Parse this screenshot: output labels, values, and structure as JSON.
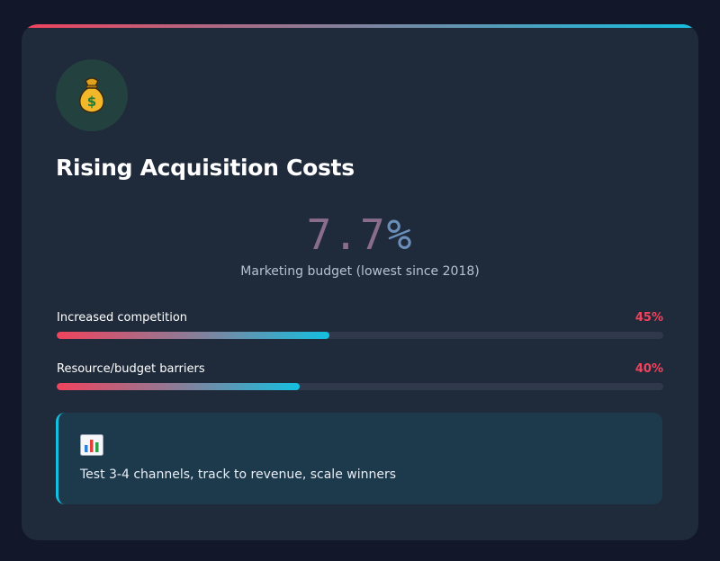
{
  "card": {
    "icon": "money-bag-icon",
    "title": "Rising Acquisition Costs",
    "stat": {
      "number": "7.7",
      "unit": "%",
      "caption": "Marketing budget (lowest since 2018)"
    },
    "metrics": [
      {
        "label": "Increased competition",
        "percent_label": "45%",
        "value": 45
      },
      {
        "label": "Resource/budget barriers",
        "percent_label": "40%",
        "value": 40
      }
    ],
    "tip": {
      "icon": "bar-chart-icon",
      "text": "Test 3-4 channels, track to revenue, scale winners"
    }
  },
  "colors": {
    "background": "#121829",
    "card": "#1f2a3b",
    "accent_red": "#f0435d",
    "accent_cyan": "#14bfe0",
    "track": "#2f394b",
    "tip_background": "#1d3a4c"
  }
}
